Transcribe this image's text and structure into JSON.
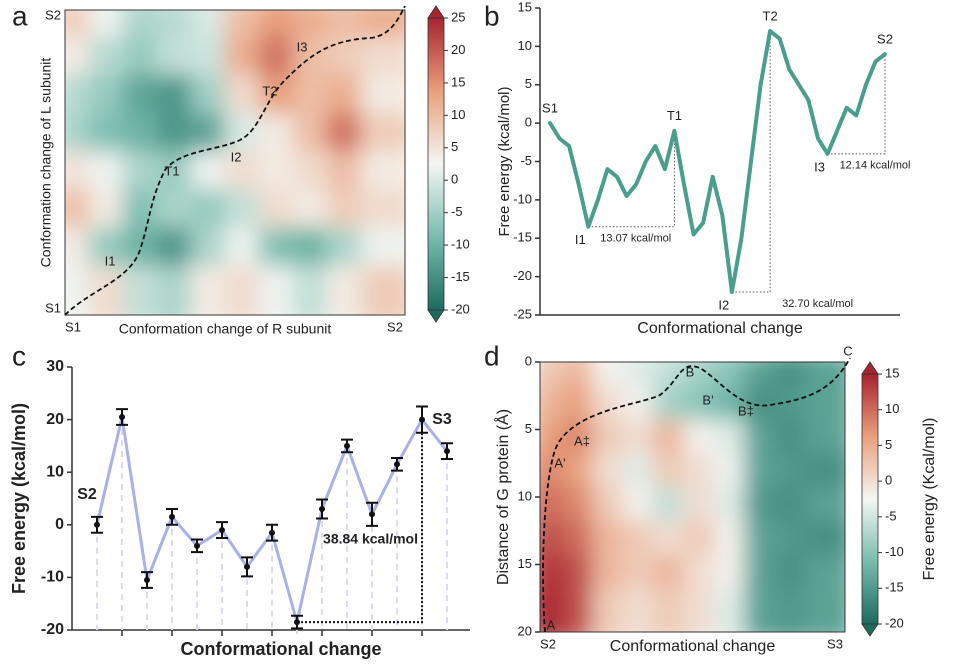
{
  "chart_data": [
    {
      "type": "heatmap",
      "panel_label": "a",
      "xlabel": "Conformation change of R subunit",
      "ylabel": "Conformation change of L subunit",
      "x_end_labels": [
        "S1",
        "S2"
      ],
      "y_end_labels": [
        "S1",
        "S2"
      ],
      "path_labels": [
        "I1",
        "T1",
        "I2",
        "T2",
        "I3"
      ],
      "values": [
        [
          8,
          2,
          -4,
          -3,
          0,
          10,
          14,
          12,
          10,
          12
        ],
        [
          4,
          -3,
          -6,
          -2,
          -1,
          12,
          18,
          10,
          8,
          6
        ],
        [
          -3,
          -6,
          -12,
          -14,
          -5,
          6,
          14,
          10,
          12,
          4
        ],
        [
          -4,
          -8,
          -10,
          -14,
          -12,
          0,
          4,
          10,
          18,
          8
        ],
        [
          5,
          2,
          -4,
          -6,
          2,
          6,
          4,
          6,
          10,
          4
        ],
        [
          10,
          4,
          -8,
          -4,
          -6,
          -2,
          6,
          4,
          8,
          6
        ],
        [
          4,
          -6,
          -10,
          -14,
          -4,
          2,
          -8,
          -10,
          -4,
          2
        ],
        [
          2,
          6,
          -2,
          -4,
          4,
          6,
          2,
          -2,
          4,
          8
        ]
      ],
      "colors": [
        "#1d6b5f",
        "#78bcae",
        "#f4f6f3",
        "#e9a07c",
        "#a8232e"
      ],
      "clim": [
        -20,
        25
      ],
      "cticks": [
        -20,
        -15,
        -10,
        -5,
        0,
        5,
        10,
        15,
        20,
        25
      ]
    },
    {
      "type": "line",
      "panel_label": "b",
      "ylabel": "Free energy (kcal/mol)",
      "xlabel": "Conformational change",
      "color": "#4a9e8c",
      "values": [
        0,
        -2,
        -3,
        -8,
        -13.5,
        -10,
        -6,
        -7,
        -9.5,
        -8,
        -5,
        -3,
        -6,
        -1,
        -8,
        -14.5,
        -13,
        -7,
        -12,
        -22,
        -15,
        -5,
        5,
        12,
        11,
        7,
        5,
        3,
        -2,
        -4,
        -1,
        2,
        1,
        5,
        8,
        9
      ],
      "point_labels": [
        "S1",
        null,
        null,
        null,
        "I1",
        null,
        null,
        null,
        null,
        null,
        null,
        null,
        null,
        "T1",
        null,
        null,
        null,
        null,
        null,
        "I2",
        null,
        null,
        null,
        "T2",
        null,
        null,
        null,
        null,
        null,
        "I3",
        null,
        null,
        null,
        null,
        null,
        "S2"
      ],
      "annotations": [
        "13.07 kcal/mol",
        "32.70 kcal/mol",
        "12.14 kcal/mol"
      ],
      "ylim": [
        -25,
        15
      ],
      "yticks": [
        -25,
        -20,
        -15,
        -10,
        -5,
        0,
        5,
        10,
        15
      ]
    },
    {
      "type": "errorbar",
      "panel_label": "c",
      "ylabel": "Free energy (kcal/mol)",
      "xlabel": "Conformational change",
      "color": "#aab0e8",
      "values": [
        0,
        20.5,
        -10.5,
        1.5,
        -4,
        -1,
        -8,
        -1.5,
        -18.5,
        3,
        15,
        2,
        11.5,
        20,
        14
      ],
      "errors": [
        1.5,
        1.5,
        1.5,
        1.5,
        1.2,
        1.5,
        1.8,
        1.5,
        1.2,
        1.8,
        1.2,
        2.2,
        1.2,
        2.5,
        1.5
      ],
      "point_labels": [
        "S2",
        null,
        null,
        null,
        null,
        null,
        null,
        null,
        null,
        null,
        null,
        null,
        null,
        "S3",
        null
      ],
      "annotations": [
        "38.84 kcal/mol"
      ],
      "ylim": [
        -20,
        30
      ],
      "yticks": [
        -20,
        -10,
        0,
        10,
        20,
        30
      ]
    },
    {
      "type": "heatmap",
      "panel_label": "d",
      "xlabel": "Conformational change",
      "ylabel": "Distance of G protein (Å)",
      "x_end_labels": [
        "S2",
        "S3"
      ],
      "path_labels": [
        "A",
        "A'",
        "A‡",
        "B",
        "B'",
        "B‡",
        "C"
      ],
      "values": [
        [
          2,
          4,
          -2,
          -4,
          -6,
          -8,
          -10,
          -14,
          -16,
          -14
        ],
        [
          4,
          6,
          0,
          -2,
          -8,
          -10,
          -12,
          -16,
          -15,
          -14
        ],
        [
          6,
          8,
          2,
          0,
          4,
          -2,
          -4,
          -14,
          -16,
          -14
        ],
        [
          8,
          6,
          0,
          -4,
          2,
          0,
          -3,
          -14,
          -15,
          -16
        ],
        [
          10,
          8,
          2,
          -2,
          -6,
          0,
          -4,
          -15,
          -16,
          -14
        ],
        [
          12,
          10,
          4,
          2,
          0,
          2,
          -2,
          -14,
          -15,
          -16
        ],
        [
          14,
          12,
          4,
          2,
          4,
          0,
          -2,
          -14,
          -16,
          -14
        ],
        [
          15,
          12,
          2,
          0,
          2,
          0,
          -4,
          -14,
          -15,
          -14
        ]
      ],
      "ylim": [
        20,
        0
      ],
      "yticks": [
        0,
        5,
        10,
        15,
        20
      ],
      "colors": [
        "#1d6b5f",
        "#78bcae",
        "#f4f6f3",
        "#e9a07c",
        "#a8232e"
      ],
      "clim": [
        -20,
        15
      ],
      "cticks": [
        -20,
        -15,
        -10,
        -5,
        0,
        5,
        10,
        15
      ],
      "clabel": "Free energy (Kcal/mol)"
    }
  ]
}
